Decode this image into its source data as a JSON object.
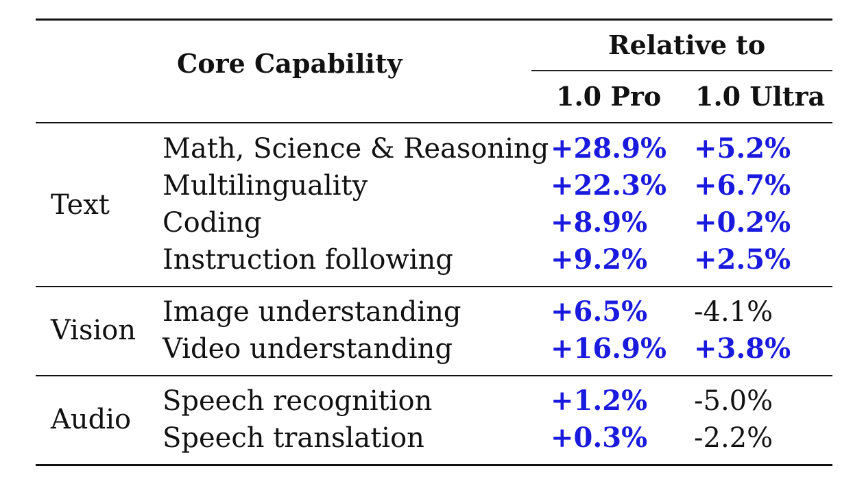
{
  "table": {
    "header": {
      "core_capability": "Core Capability",
      "relative_to": "Relative to",
      "col_pro": "1.0 Pro",
      "col_ultra": "1.0 Ultra"
    },
    "groups": [
      {
        "category": "Text",
        "rows": [
          {
            "capability": "Math, Science & Reasoning",
            "pro": "+28.9%",
            "ultra": "+5.2%"
          },
          {
            "capability": "Multilinguality",
            "pro": "+22.3%",
            "ultra": "+6.7%"
          },
          {
            "capability": "Coding",
            "pro": "+8.9%",
            "ultra": "+0.2%"
          },
          {
            "capability": "Instruction following",
            "pro": "+9.2%",
            "ultra": "+2.5%"
          }
        ]
      },
      {
        "category": "Vision",
        "rows": [
          {
            "capability": "Image understanding",
            "pro": "+6.5%",
            "ultra": "-4.1%"
          },
          {
            "capability": "Video understanding",
            "pro": "+16.9%",
            "ultra": "+3.8%"
          }
        ]
      },
      {
        "category": "Audio",
        "rows": [
          {
            "capability": "Speech recognition",
            "pro": "+1.2%",
            "ultra": "-5.0%"
          },
          {
            "capability": "Speech translation",
            "pro": "+0.3%",
            "ultra": "-2.2%"
          }
        ]
      }
    ],
    "colors": {
      "positive": "#1a1adf",
      "negative": "#111111"
    }
  }
}
